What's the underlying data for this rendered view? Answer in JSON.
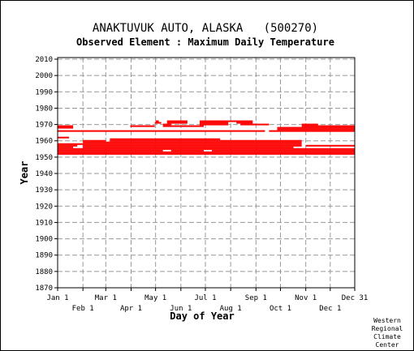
{
  "chart_data": {
    "type": "scatter",
    "title": "ANAKTUVUK AUTO, ALASKA   (500270)",
    "subtitle": "Observed Element : Maximum Daily Temperature",
    "xlabel": "Day of Year",
    "ylabel": "Year",
    "x_ticks_top": [
      "Jan 1",
      "Mar 1",
      "May 1",
      "Jul 1",
      "Sep 1",
      "Nov 1",
      "Dec 31"
    ],
    "x_ticks_bottom": [
      "Feb 1",
      "Apr 1",
      "Jun 1",
      "Aug 1",
      "Oct 1",
      "Dec 1"
    ],
    "y_ticks": [
      "2010",
      "2000",
      "1990",
      "1980",
      "1970",
      "1960",
      "1950",
      "1940",
      "1930",
      "1920",
      "1910",
      "1900",
      "1890",
      "1880",
      "1870"
    ],
    "xlim": [
      1,
      365
    ],
    "ylim": [
      1870,
      2011
    ],
    "grid": true,
    "credit": [
      "Western",
      "Regional",
      "Climate",
      "Center"
    ],
    "series_color": "#ff0000",
    "series": [
      {
        "year": 1952,
        "ranges": [
          [
            1,
            365
          ]
        ]
      },
      {
        "year": 1953,
        "ranges": [
          [
            1,
            365
          ]
        ]
      },
      {
        "year": 1954,
        "ranges": [
          [
            1,
            130
          ],
          [
            140,
            180
          ],
          [
            190,
            365
          ]
        ]
      },
      {
        "year": 1955,
        "ranges": [
          [
            1,
            365
          ]
        ]
      },
      {
        "year": 1956,
        "ranges": [
          [
            1,
            20
          ],
          [
            32,
            290
          ]
        ]
      },
      {
        "year": 1957,
        "ranges": [
          [
            1,
            25
          ],
          [
            32,
            300
          ],
          [
            305,
            365
          ]
        ]
      },
      {
        "year": 1958,
        "ranges": [
          [
            1,
            300
          ]
        ]
      },
      {
        "year": 1959,
        "ranges": [
          [
            32,
            300
          ]
        ]
      },
      {
        "year": 1960,
        "ranges": [
          [
            32,
            60
          ],
          [
            65,
            300
          ]
        ]
      },
      {
        "year": 1961,
        "ranges": [
          [
            65,
            200
          ]
        ]
      },
      {
        "year": 1962,
        "ranges": [
          [
            1,
            15
          ]
        ]
      },
      {
        "year": 1966,
        "ranges": [
          [
            1,
            255
          ],
          [
            260,
            365
          ]
        ]
      },
      {
        "year": 1967,
        "ranges": [
          [
            270,
            365
          ]
        ]
      },
      {
        "year": 1968,
        "ranges": [
          [
            1,
            20
          ],
          [
            270,
            365
          ]
        ]
      },
      {
        "year": 1969,
        "ranges": [
          [
            1,
            20
          ],
          [
            90,
            120
          ],
          [
            130,
            180
          ],
          [
            300,
            365
          ]
        ]
      },
      {
        "year": 1970,
        "ranges": [
          [
            130,
            140
          ],
          [
            175,
            210
          ],
          [
            225,
            260
          ],
          [
            300,
            320
          ]
        ]
      },
      {
        "year": 1971,
        "ranges": [
          [
            120,
            128
          ],
          [
            135,
            160
          ],
          [
            175,
            210
          ],
          [
            220,
            240
          ]
        ]
      },
      {
        "year": 1972,
        "ranges": [
          [
            121,
            125
          ],
          [
            135,
            160
          ],
          [
            175,
            240
          ]
        ]
      }
    ]
  }
}
